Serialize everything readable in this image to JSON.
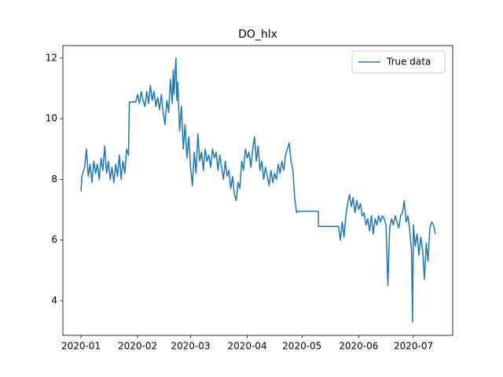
{
  "chart_data": {
    "type": "line",
    "title": "DO_hlx",
    "x": [
      0,
      0.5,
      1,
      2,
      3,
      4,
      5,
      6,
      7,
      8,
      9,
      10,
      11,
      12,
      13,
      14,
      15,
      16,
      17,
      18,
      19,
      20,
      21,
      22,
      23,
      24,
      25,
      26,
      26.5,
      30,
      31,
      32,
      33,
      34,
      35,
      36,
      37,
      38,
      39,
      40,
      41,
      42,
      43,
      44,
      45,
      46,
      47,
      48,
      49,
      50,
      50.5,
      51,
      51.5,
      52,
      52.5,
      53,
      54,
      55,
      56,
      57,
      58,
      59,
      60,
      61,
      62,
      63,
      64,
      65,
      66,
      67,
      68,
      69,
      70,
      71,
      72,
      73,
      74,
      75,
      76,
      77,
      78,
      79,
      80,
      81,
      82,
      83,
      84,
      85,
      86,
      87,
      88,
      89,
      90,
      91,
      92,
      93,
      94,
      95,
      96,
      97,
      98,
      99,
      100,
      101,
      102,
      103,
      104,
      105,
      106,
      107,
      108,
      109,
      110,
      111,
      112,
      113,
      114,
      115,
      116,
      117,
      118,
      118.5,
      130,
      130,
      141,
      142,
      143,
      144,
      145,
      146,
      147,
      148,
      149,
      150,
      151,
      152,
      153,
      154,
      155,
      156,
      157,
      158,
      159,
      160,
      161,
      162,
      163,
      164,
      165,
      166,
      167,
      168,
      169,
      170,
      171,
      172,
      173,
      174,
      175,
      176,
      177,
      178,
      179,
      180,
      181,
      181.5,
      182,
      183,
      184,
      185,
      186,
      187,
      188,
      189,
      190,
      191,
      192,
      193,
      194
    ],
    "series": [
      {
        "name": "True data",
        "color": "#1f77b4",
        "values": [
          7.6,
          8.1,
          8.2,
          8.4,
          9.0,
          8.1,
          8.5,
          7.9,
          8.6,
          8.2,
          8.5,
          8.0,
          8.7,
          8.3,
          9.1,
          8.2,
          8.6,
          8.0,
          8.4,
          7.9,
          8.5,
          8.1,
          8.8,
          8.0,
          8.6,
          8.2,
          9.0,
          8.8,
          10.55,
          10.55,
          10.8,
          10.5,
          10.9,
          10.6,
          10.4,
          10.9,
          10.5,
          11.1,
          10.6,
          10.9,
          10.4,
          10.7,
          10.3,
          10.8,
          10.2,
          9.8,
          10.6,
          10.2,
          11.3,
          10.5,
          11.6,
          10.8,
          11.5,
          12.0,
          10.6,
          11.2,
          9.6,
          10.4,
          9.0,
          9.8,
          8.7,
          9.4,
          8.4,
          7.8,
          8.9,
          8.2,
          9.5,
          8.6,
          8.9,
          8.3,
          9.0,
          8.6,
          8.8,
          8.4,
          9.0,
          8.7,
          8.9,
          8.3,
          8.8,
          8.4,
          8.0,
          8.6,
          8.1,
          8.3,
          7.7,
          8.1,
          7.5,
          7.3,
          7.9,
          7.7,
          8.6,
          8.3,
          9.0,
          8.7,
          8.9,
          8.4,
          9.0,
          9.4,
          8.6,
          9.1,
          8.3,
          8.6,
          8.0,
          8.4,
          8.1,
          7.8,
          8.3,
          7.9,
          8.2,
          8.0,
          8.5,
          8.2,
          8.6,
          8.3,
          8.8,
          9.0,
          9.2,
          8.6,
          8.3,
          7.4,
          6.9,
          6.95,
          6.95,
          6.45,
          6.45,
          6.0,
          6.6,
          6.1,
          6.8,
          7.2,
          7.5,
          7.1,
          7.4,
          6.9,
          7.3,
          7.0,
          7.2,
          6.8,
          6.9,
          6.5,
          6.7,
          6.3,
          6.8,
          6.2,
          6.7,
          6.5,
          6.8,
          6.6,
          6.8,
          6.7,
          6.5,
          4.5,
          6.4,
          6.7,
          6.5,
          6.8,
          6.6,
          6.4,
          6.8,
          6.9,
          7.3,
          6.6,
          6.8,
          6.3,
          5.6,
          3.3,
          6.5,
          5.8,
          6.2,
          5.5,
          6.1,
          5.7,
          4.7,
          5.9,
          5.3,
          6.4,
          6.6,
          6.5,
          6.2
        ]
      }
    ],
    "xlim": [
      -9.9,
      203.5
    ],
    "xticks": [
      {
        "value": 0,
        "label": "2020-01"
      },
      {
        "value": 31,
        "label": "2020-02"
      },
      {
        "value": 60,
        "label": "2020-03"
      },
      {
        "value": 91,
        "label": "2020-04"
      },
      {
        "value": 121,
        "label": "2020-05"
      },
      {
        "value": 152,
        "label": "2020-06"
      },
      {
        "value": 182,
        "label": "2020-07"
      }
    ],
    "ylim": [
      2.86,
      12.41
    ],
    "yticks": [
      4,
      6,
      8,
      10,
      12
    ],
    "legend": "upper right"
  }
}
